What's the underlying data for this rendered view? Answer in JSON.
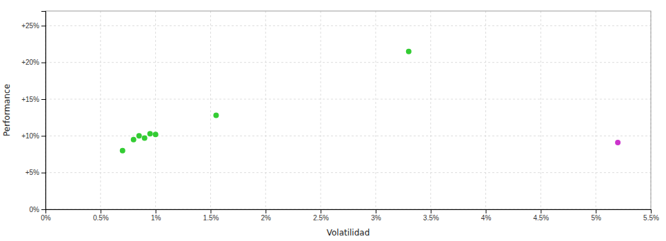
{
  "chart_data": {
    "type": "scatter",
    "xlabel": "Volatilidad",
    "ylabel": "Performance",
    "series": [
      {
        "color": "#33cc33",
        "x": [
          0.007,
          0.008,
          0.0085,
          0.009,
          0.0095,
          0.01,
          0.0155,
          0.033
        ],
        "values": [
          0.08,
          0.095,
          0.1,
          0.097,
          0.103,
          0.102,
          0.128,
          0.215
        ]
      },
      {
        "color": "#cc33cc",
        "x": [
          0.052
        ],
        "values": [
          0.091
        ]
      }
    ],
    "xlim": [
      0.0,
      0.055
    ],
    "ylim": [
      0.0,
      0.27
    ],
    "xticks": [
      {
        "value": 0.0,
        "label": "0%"
      },
      {
        "value": 0.005,
        "label": "0.5%"
      },
      {
        "value": 0.01,
        "label": "1%"
      },
      {
        "value": 0.015,
        "label": "1.5%"
      },
      {
        "value": 0.02,
        "label": "2%"
      },
      {
        "value": 0.025,
        "label": "2.5%"
      },
      {
        "value": 0.03,
        "label": "3%"
      },
      {
        "value": 0.035,
        "label": "3.5%"
      },
      {
        "value": 0.04,
        "label": "4%"
      },
      {
        "value": 0.045,
        "label": "4.5%"
      },
      {
        "value": 0.05,
        "label": "5%"
      },
      {
        "value": 0.055,
        "label": "5.5%"
      }
    ],
    "yticks": [
      {
        "value": 0.0,
        "label": "0%"
      },
      {
        "value": 0.05,
        "label": "+5%"
      },
      {
        "value": 0.1,
        "label": "+10%"
      },
      {
        "value": 0.15,
        "label": "+15%"
      },
      {
        "value": 0.2,
        "label": "+20%"
      },
      {
        "value": 0.25,
        "label": "+25%"
      }
    ],
    "grid": true
  }
}
